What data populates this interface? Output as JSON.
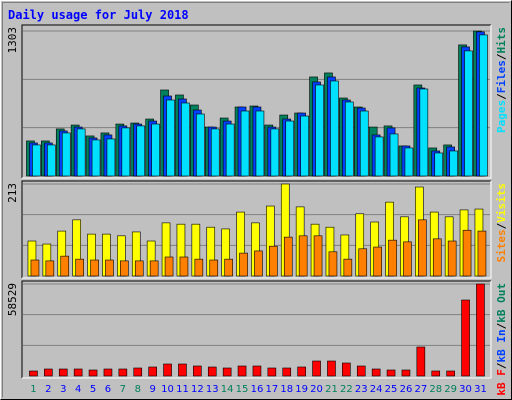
{
  "title": "Daily usage for July 2018",
  "legend_separator": "/",
  "chart_data": [
    {
      "type": "bar",
      "ylim": [
        0,
        1303
      ],
      "yticks": [
        1303
      ],
      "grid": true,
      "series": [
        {
          "name": "Hits",
          "color": "#00805c",
          "values": [
            315,
            315,
            423,
            458,
            360,
            387,
            467,
            476,
            512,
            773,
            728,
            638,
            440,
            521,
            620,
            629,
            458,
            548,
            566,
            890,
            926,
            701,
            620,
            440,
            450,
            270,
            818,
            252,
            279,
            1178,
            1303
          ]
        },
        {
          "name": "Files",
          "color": "#0040ff",
          "values": [
            297,
            297,
            405,
            440,
            342,
            369,
            450,
            467,
            494,
            719,
            692,
            593,
            440,
            494,
            620,
            620,
            440,
            512,
            566,
            845,
            890,
            683,
            611,
            369,
            432,
            270,
            791,
            225,
            261,
            1160,
            1295
          ]
        },
        {
          "name": "Pages",
          "color": "#00e0ff",
          "values": [
            279,
            279,
            387,
            423,
            324,
            333,
            432,
            450,
            467,
            683,
            656,
            557,
            423,
            467,
            584,
            584,
            423,
            494,
            539,
            818,
            854,
            665,
            584,
            351,
            378,
            252,
            782,
            207,
            225,
            1124,
            1268
          ]
        }
      ]
    },
    {
      "type": "bar",
      "ylim": [
        0,
        213
      ],
      "yticks": [
        213
      ],
      "grid": true,
      "series": [
        {
          "name": "Visits",
          "color": "#ffff00",
          "values": [
            81,
            74,
            104,
            130,
            97,
            97,
            93,
            102,
            81,
            123,
            120,
            120,
            113,
            109,
            148,
            123,
            162,
            213,
            160,
            120,
            113,
            95,
            144,
            125,
            171,
            137,
            206,
            148,
            137,
            153,
            155
          ]
        },
        {
          "name": "Sites",
          "color": "#ff8000",
          "values": [
            37,
            35,
            46,
            39,
            37,
            37,
            35,
            35,
            35,
            44,
            44,
            39,
            37,
            39,
            53,
            58,
            69,
            90,
            93,
            93,
            56,
            39,
            63,
            67,
            83,
            79,
            130,
            86,
            81,
            106,
            104
          ]
        }
      ]
    },
    {
      "type": "bar",
      "ylim": [
        0,
        58529
      ],
      "yticks": [
        58529
      ],
      "grid": true,
      "categories": [
        "1",
        "2",
        "3",
        "4",
        "5",
        "6",
        "7",
        "8",
        "9",
        "10",
        "11",
        "12",
        "13",
        "14",
        "15",
        "16",
        "17",
        "18",
        "19",
        "20",
        "21",
        "22",
        "23",
        "24",
        "25",
        "26",
        "27",
        "28",
        "29",
        "30",
        "31"
      ],
      "label_colors": [
        "#00805c",
        "#0000ff",
        "#0000ff",
        "#0000ff",
        "#0000ff",
        "#0000ff",
        "#00805c",
        "#00805c",
        "#0000ff",
        "#0000ff",
        "#0000ff",
        "#0000ff",
        "#0000ff",
        "#00805c",
        "#00805c",
        "#0000ff",
        "#0000ff",
        "#0000ff",
        "#0000ff",
        "#0000ff",
        "#00805c",
        "#00805c",
        "#0000ff",
        "#0000ff",
        "#0000ff",
        "#0000ff",
        "#0000ff",
        "#00805c",
        "#00805c",
        "#0000ff",
        "#0000ff"
      ],
      "series": [
        {
          "name": "kB Out",
          "color": "#00805c",
          "values": [
            0,
            0,
            0,
            0,
            0,
            0,
            0,
            0,
            0,
            0,
            0,
            0,
            0,
            0,
            0,
            0,
            0,
            0,
            0,
            0,
            0,
            0,
            0,
            0,
            0,
            0,
            0,
            0,
            0,
            0,
            0
          ]
        },
        {
          "name": "kB In",
          "color": "#0040ff",
          "values": [
            0,
            0,
            0,
            0,
            0,
            0,
            0,
            0,
            0,
            0,
            0,
            0,
            0,
            0,
            0,
            0,
            0,
            0,
            0,
            0,
            0,
            0,
            0,
            0,
            0,
            0,
            0,
            0,
            0,
            0,
            0
          ]
        },
        {
          "name": "kB F",
          "color": "#ff0000",
          "values": [
            3180,
            4452,
            4452,
            4452,
            3816,
            4452,
            4452,
            5088,
            5724,
            7632,
            7632,
            6360,
            5724,
            5088,
            6360,
            6360,
            5088,
            5088,
            5724,
            9540,
            9540,
            8268,
            6360,
            4452,
            3816,
            3816,
            18444,
            3180,
            3180,
            48336,
            58529
          ]
        }
      ]
    }
  ]
}
